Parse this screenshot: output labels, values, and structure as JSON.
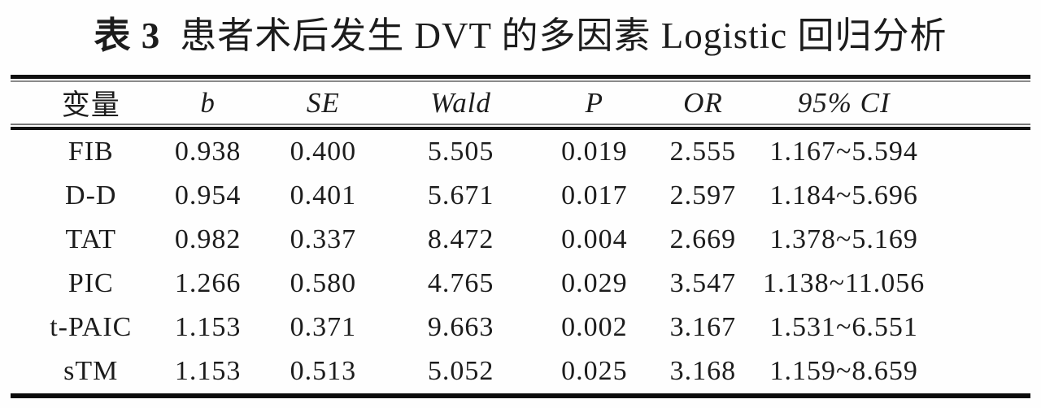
{
  "title": {
    "index_label": "表 3",
    "caption": "患者术后发生 DVT 的多因素 Logistic 回归分析"
  },
  "table": {
    "columns": [
      {
        "key": "variable",
        "label": "变量"
      },
      {
        "key": "b",
        "label": "b"
      },
      {
        "key": "se",
        "label": "SE"
      },
      {
        "key": "wald",
        "label": "Wald"
      },
      {
        "key": "p",
        "label": "P"
      },
      {
        "key": "or",
        "label": "OR"
      },
      {
        "key": "ci",
        "label": "95% CI"
      }
    ],
    "rows": [
      {
        "variable": "FIB",
        "b": "0.938",
        "se": "0.400",
        "wald": "5.505",
        "p": "0.019",
        "or": "2.555",
        "ci": "1.167~5.594"
      },
      {
        "variable": "D-D",
        "b": "0.954",
        "se": "0.401",
        "wald": "5.671",
        "p": "0.017",
        "or": "2.597",
        "ci": "1.184~5.696"
      },
      {
        "variable": "TAT",
        "b": "0.982",
        "se": "0.337",
        "wald": "8.472",
        "p": "0.004",
        "or": "2.669",
        "ci": "1.378~5.169"
      },
      {
        "variable": "PIC",
        "b": "1.266",
        "se": "0.580",
        "wald": "4.765",
        "p": "0.029",
        "or": "3.547",
        "ci": "1.138~11.056"
      },
      {
        "variable": "t-PAIC",
        "b": "1.153",
        "se": "0.371",
        "wald": "9.663",
        "p": "0.002",
        "or": "3.167",
        "ci": "1.531~6.551"
      },
      {
        "variable": "sTM",
        "b": "1.153",
        "se": "0.513",
        "wald": "5.052",
        "p": "0.025",
        "or": "3.168",
        "ci": "1.159~8.659"
      }
    ]
  },
  "colors": {
    "background": "#ffffff",
    "text": "#1c1c1c",
    "rule_dark": "#101010",
    "rule_light": "#8a8a8a"
  }
}
